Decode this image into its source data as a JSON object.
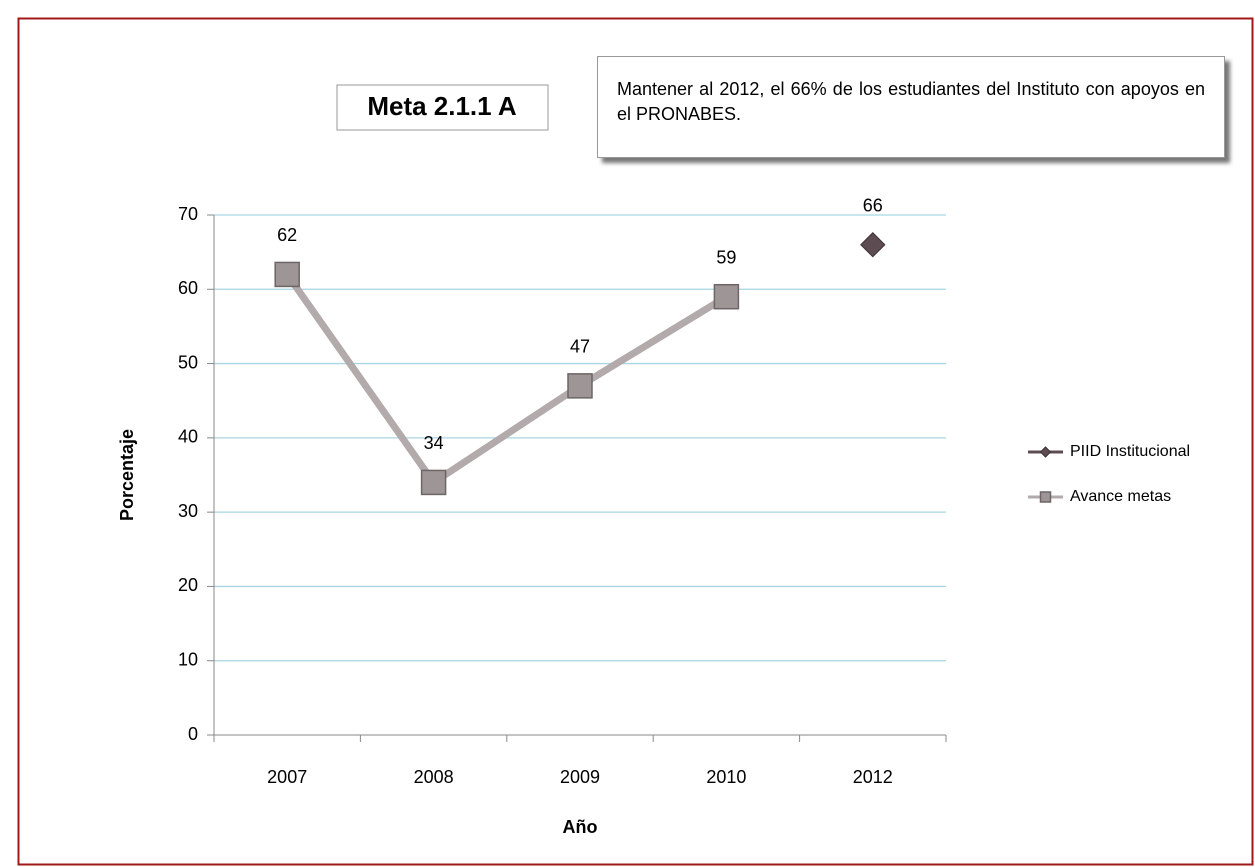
{
  "chart_data": {
    "type": "line",
    "title": "Meta 2.1.1 A",
    "annotation": "Mantener al 2012, el 66% de los estudiantes del Instituto con apoyos en el PRONABES.",
    "x_label": "Año",
    "y_label": "Porcentaje",
    "categories": [
      "2007",
      "2008",
      "2009",
      "2010",
      "2012"
    ],
    "series": [
      {
        "name": "PIID Institucional",
        "color": "#5e4c53",
        "marker": "diamond",
        "values": [
          null,
          null,
          null,
          null,
          66
        ]
      },
      {
        "name": "Avance metas",
        "color": "#b3abab",
        "marker": "square",
        "values": [
          62,
          34,
          47,
          59,
          null
        ]
      }
    ],
    "ylim": [
      0,
      70
    ],
    "yticks": [
      0,
      10,
      20,
      30,
      40,
      50,
      60,
      70
    ],
    "grid": true,
    "legend": "right"
  }
}
